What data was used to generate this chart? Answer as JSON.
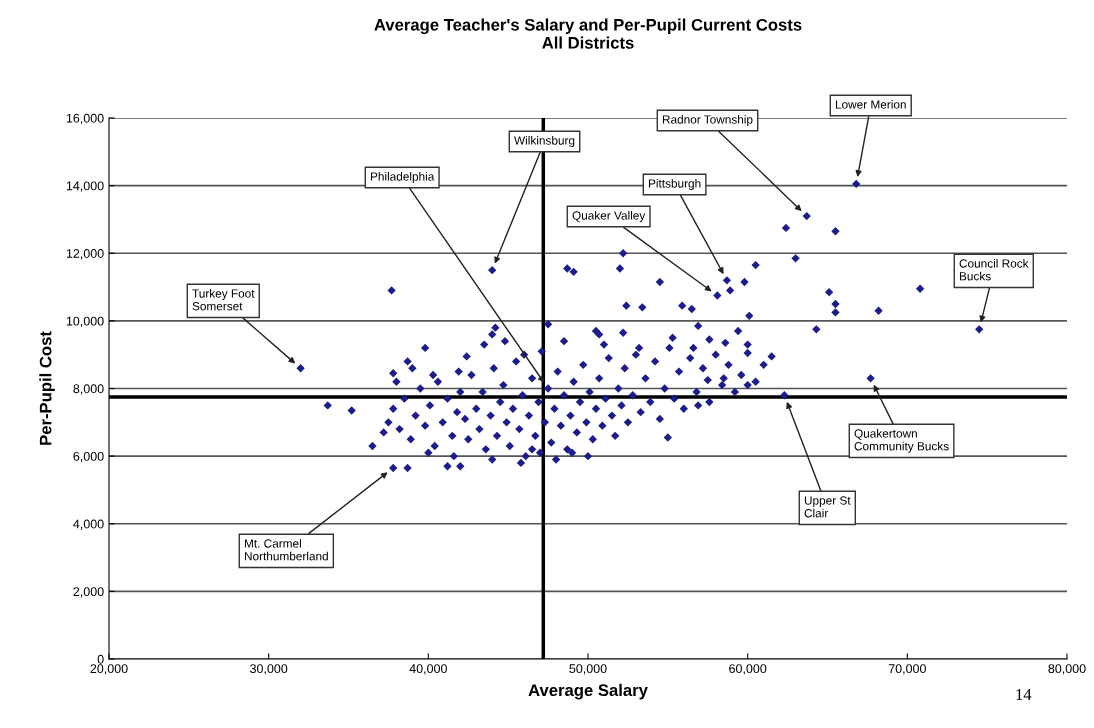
{
  "chart_data": {
    "type": "scatter",
    "title": "Average Teacher's Salary and Per-Pupil Current Costs\nAll Districts",
    "xlabel": "Average Salary",
    "ylabel": "Per-Pupil Cost",
    "xlim": [
      20000,
      80000
    ],
    "xticks": [
      {
        "value": 20000,
        "label": "20,000"
      },
      {
        "value": 30000,
        "label": "30,000"
      },
      {
        "value": 40000,
        "label": "40,000"
      },
      {
        "value": 50000,
        "label": "50,000"
      },
      {
        "value": 60000,
        "label": "60,000"
      },
      {
        "value": 70000,
        "label": "70,000"
      },
      {
        "value": 80000,
        "label": "80,000"
      }
    ],
    "ylim": [
      0,
      16000
    ],
    "yticks": [
      0,
      {
        "value": 2000,
        "label": "2,000"
      },
      {
        "value": 4000,
        "label": "4,000"
      },
      {
        "value": 6000,
        "label": "6,000"
      },
      {
        "value": 8000,
        "label": "8,000"
      },
      {
        "value": 10000,
        "label": "10,000"
      },
      {
        "value": 12000,
        "label": "12,000"
      },
      {
        "value": 14000,
        "label": "14,000"
      },
      {
        "value": 16000,
        "label": "16,000"
      }
    ],
    "grid": "y",
    "marker": "diamond",
    "ref_lines": [
      {
        "axis": "x",
        "value": 47200,
        "color": "#000000"
      },
      {
        "axis": "y",
        "value": 7750,
        "color": "#000000"
      }
    ],
    "series": [
      {
        "color": "#1c1c8c",
        "x": [
          66800,
          63700,
          62400,
          65500,
          63000,
          60500,
          58700,
          58900,
          58100,
          59800,
          54500,
          52200,
          52000,
          48700,
          49100,
          65100,
          65500,
          65500,
          68200,
          70800,
          74500,
          64300,
          60100,
          52400,
          53400,
          55900,
          56500,
          67700,
          62300,
          61500,
          59400,
          60000,
          58600,
          57600,
          56900,
          56600,
          55300,
          53200,
          52200,
          50700,
          58500,
          60000,
          56900,
          55000,
          57500,
          32000,
          37700,
          44000,
          33700,
          35200,
          36500,
          37800,
          38700,
          41200,
          39800,
          38700,
          37800,
          42400,
          41900,
          40300,
          44000,
          37500,
          37800,
          38200,
          38500,
          38900,
          39200,
          39500,
          39800,
          40100,
          40400,
          40600,
          40900,
          41200,
          41500,
          41800,
          38000,
          39000,
          40000,
          37200,
          41600,
          42000,
          42300,
          42500,
          42700,
          43000,
          43200,
          43400,
          43600,
          43900,
          44100,
          44300,
          44500,
          44700,
          44900,
          45100,
          45300,
          45500,
          45700,
          45900,
          46100,
          46300,
          46500,
          46700,
          46900,
          47100,
          47300,
          47500,
          47700,
          47900,
          48100,
          48300,
          48500,
          48700,
          48900,
          49100,
          49300,
          49500,
          49700,
          49900,
          50100,
          50300,
          50500,
          50700,
          50900,
          51100,
          51300,
          51500,
          51700,
          51900,
          52100,
          52300,
          52500,
          52800,
          53000,
          53300,
          53600,
          53900,
          54200,
          54500,
          54800,
          55100,
          55400,
          55700,
          56000,
          56400,
          56800,
          57200,
          57600,
          58000,
          58400,
          58800,
          59200,
          59600,
          60000,
          60500,
          61000,
          44000,
          45800,
          47000,
          48000,
          46500,
          42000,
          50000,
          49000,
          43500,
          44200,
          44800,
          46000,
          47500,
          48500,
          50500,
          51000
        ],
        "values": [
          14050,
          13100,
          12750,
          12650,
          11850,
          11650,
          11200,
          10900,
          10750,
          11150,
          11150,
          12000,
          11550,
          11550,
          11450,
          10850,
          10500,
          10250,
          10300,
          10950,
          9750,
          9750,
          10150,
          10450,
          10400,
          10450,
          10350,
          8300,
          7800,
          8950,
          9700,
          9050,
          9350,
          9450,
          9850,
          9200,
          9500,
          9200,
          9650,
          9600,
          8300,
          8100,
          7500,
          6550,
          8250,
          8600,
          10900,
          11500,
          7500,
          7350,
          6300,
          5650,
          5650,
          5700,
          9200,
          8800,
          8450,
          8950,
          8500,
          8400,
          9600,
          7000,
          7400,
          6800,
          7700,
          6500,
          7200,
          8000,
          6900,
          7500,
          6300,
          8200,
          7000,
          7700,
          6600,
          7300,
          8200,
          8600,
          6100,
          6700,
          6000,
          7900,
          7100,
          6500,
          8400,
          7400,
          6800,
          7900,
          6200,
          7200,
          8600,
          6600,
          7600,
          8100,
          7000,
          6300,
          7400,
          8800,
          6800,
          7800,
          6000,
          7200,
          8300,
          6600,
          7600,
          9100,
          7000,
          8000,
          6400,
          7400,
          8500,
          6900,
          7800,
          6200,
          7200,
          8200,
          6700,
          7600,
          8700,
          7000,
          7900,
          6500,
          7400,
          8300,
          6900,
          7700,
          8900,
          7200,
          6600,
          8000,
          7500,
          8600,
          7000,
          7800,
          9000,
          7300,
          8300,
          7600,
          8800,
          7100,
          8000,
          9200,
          7700,
          8500,
          7400,
          8900,
          7900,
          8600,
          7600,
          9000,
          8100,
          8700,
          7900,
          8400,
          9300,
          8200,
          8700,
          5900,
          5800,
          6100,
          5900,
          6200,
          5700,
          6000,
          6100,
          9300,
          9800,
          9400,
          9000,
          9900,
          9400,
          9700,
          9300
        ]
      }
    ],
    "annotations": [
      {
        "text": "Lower Merion",
        "x": 66800,
        "y": 14050
      },
      {
        "text": "Radnor Township",
        "x": 63700,
        "y": 13100
      },
      {
        "text": "Wilkinsburg",
        "x": 44000,
        "y": 11500
      },
      {
        "text": "Philadelphia",
        "x": 47500,
        "y": 8000
      },
      {
        "text": "Pittsburgh",
        "x": 58700,
        "y": 11200
      },
      {
        "text": "Quaker Valley",
        "x": 58100,
        "y": 10750
      },
      {
        "text": "Council Rock\nBucks",
        "x": 74500,
        "y": 9750
      },
      {
        "text": "Turkey Foot\nSomerset",
        "x": 32000,
        "y": 8600
      },
      {
        "text": "Quakertown\nCommunity Bucks",
        "x": 67700,
        "y": 8300
      },
      {
        "text": "Upper St\nClair",
        "x": 62300,
        "y": 7800
      },
      {
        "text": "Mt. Carmel\nNorthumberland",
        "x": 37800,
        "y": 5650
      },
      "14"
    ]
  }
}
